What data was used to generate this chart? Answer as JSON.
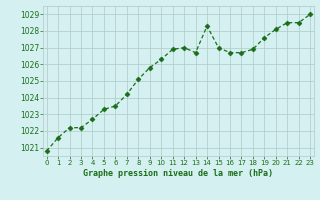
{
  "x": [
    0,
    1,
    2,
    3,
    4,
    5,
    6,
    7,
    8,
    9,
    10,
    11,
    12,
    13,
    14,
    15,
    16,
    17,
    18,
    19,
    20,
    21,
    22,
    23
  ],
  "y": [
    1020.8,
    1021.6,
    1022.2,
    1022.2,
    1022.7,
    1023.3,
    1023.5,
    1024.2,
    1025.1,
    1025.8,
    1026.3,
    1026.9,
    1027.0,
    1026.7,
    1028.3,
    1027.0,
    1026.7,
    1026.7,
    1026.9,
    1027.6,
    1028.1,
    1028.5,
    1028.5,
    1029.0
  ],
  "line_color": "#1a6e1a",
  "marker": "D",
  "marker_size": 2.5,
  "bg_color": "#d4f0f0",
  "grid_color": "#b0c8c8",
  "xlabel": "Graphe pression niveau de la mer (hPa)",
  "xlabel_color": "#1a6e1a",
  "tick_color": "#1a6e1a",
  "ylim": [
    1020.5,
    1029.5
  ],
  "yticks": [
    1021,
    1022,
    1023,
    1024,
    1025,
    1026,
    1027,
    1028,
    1029
  ],
  "xticks": [
    0,
    1,
    2,
    3,
    4,
    5,
    6,
    7,
    8,
    9,
    10,
    11,
    12,
    13,
    14,
    15,
    16,
    17,
    18,
    19,
    20,
    21,
    22,
    23
  ],
  "xlim": [
    -0.3,
    23.3
  ]
}
